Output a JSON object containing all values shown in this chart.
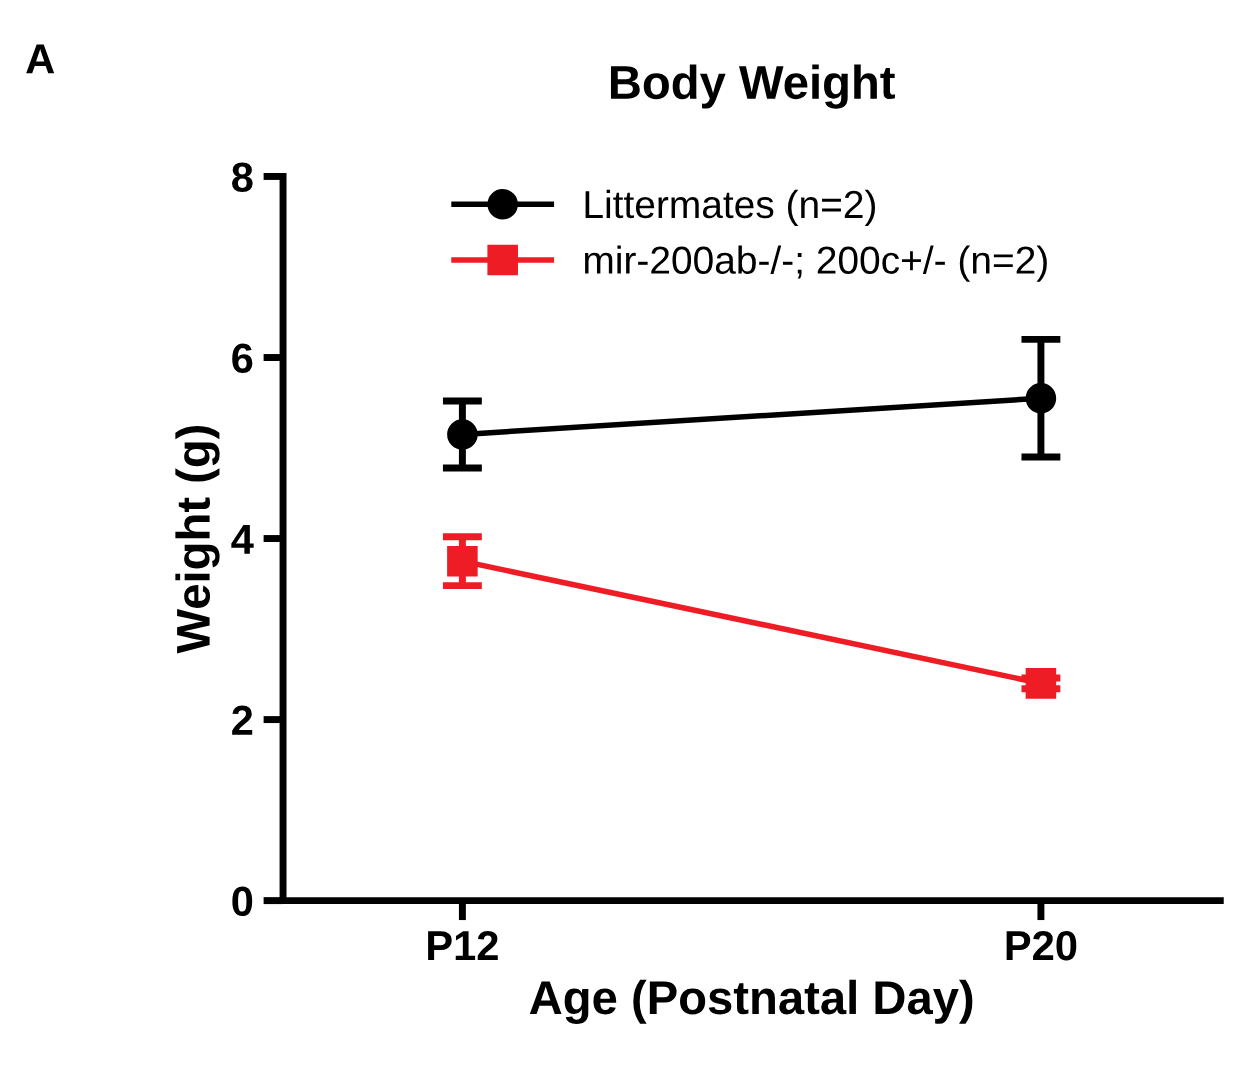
{
  "chart_data": {
    "type": "line",
    "title": "Body Weight",
    "xlabel": "Age (Postnatal Day)",
    "ylabel": "Weight (g)",
    "annotations": [
      "A"
    ],
    "categories": [
      "P12",
      "P20"
    ],
    "series": [
      {
        "name": "Littermates (n=2)",
        "color": "#000000",
        "values": [
          5.15,
          5.55
        ],
        "errors": [
          0.37,
          0.65
        ],
        "marker": "circle"
      },
      {
        "name": "mir-200ab-/-; 200c+/- (n=2)",
        "color": "#ee1c24",
        "values": [
          3.75,
          2.4
        ],
        "errors": [
          0.27,
          0.06
        ],
        "marker": "square"
      }
    ],
    "ylim": [
      0,
      8
    ],
    "yticks": [
      0,
      2,
      4,
      6,
      8
    ],
    "grid": false,
    "legend": "top",
    "line_style": "solid"
  }
}
